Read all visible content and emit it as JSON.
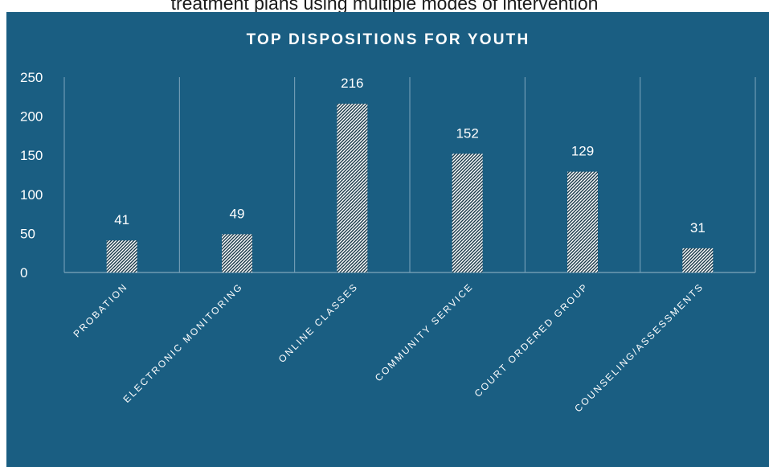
{
  "header": {
    "caption": "treatment plans using multiple modes of intervention"
  },
  "chart_data": {
    "type": "bar",
    "title": "TOP DISPOSITIONS FOR YOUTH",
    "categories": [
      "PROBATION",
      "ELECTRONIC MONITORING",
      "ONLINE CLASSES",
      "COMMUNITY SERVICE",
      "COURT ORDERED GROUP",
      "COUNSELING/ASSESSMENTS"
    ],
    "values": [
      41,
      49,
      216,
      152,
      129,
      31
    ],
    "yticks": [
      0,
      50,
      100,
      150,
      200,
      250
    ],
    "ylim": [
      0,
      250
    ],
    "xlabel": "",
    "ylabel": "",
    "data_labels": true,
    "grid": "vertical category separators",
    "legend": "none",
    "bar_fill": "diagonal hatch",
    "colors": {
      "background": "#1a5e82",
      "bar_hatch": "#ffffff",
      "bar_hatch_bg": "#1a3a4a",
      "text": "#ffffff",
      "gridline": "#7fa6bd"
    }
  }
}
